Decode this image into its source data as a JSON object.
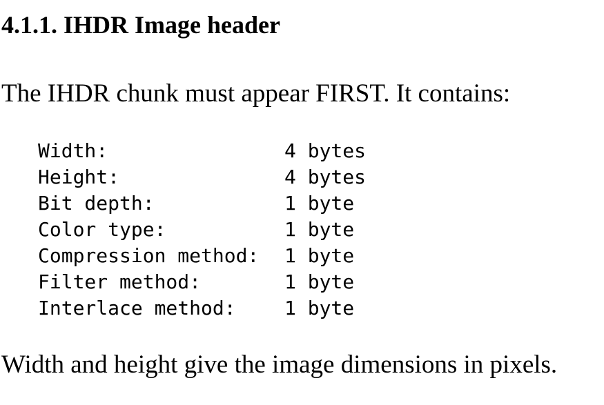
{
  "section": {
    "heading": "4.1.1. IHDR Image header"
  },
  "intro": "The IHDR chunk must appear FIRST. It contains:",
  "fields": [
    {
      "name": "Width:",
      "size": "4 bytes"
    },
    {
      "name": "Height:",
      "size": "4 bytes"
    },
    {
      "name": "Bit depth:",
      "size": "1 byte"
    },
    {
      "name": "Color type:",
      "size": "1 byte"
    },
    {
      "name": "Compression method:",
      "size": "1 byte"
    },
    {
      "name": "Filter method:",
      "size": "1 byte"
    },
    {
      "name": "Interlace method:",
      "size": "1 byte"
    }
  ],
  "outro": "Width and height give the image dimensions in pixels."
}
